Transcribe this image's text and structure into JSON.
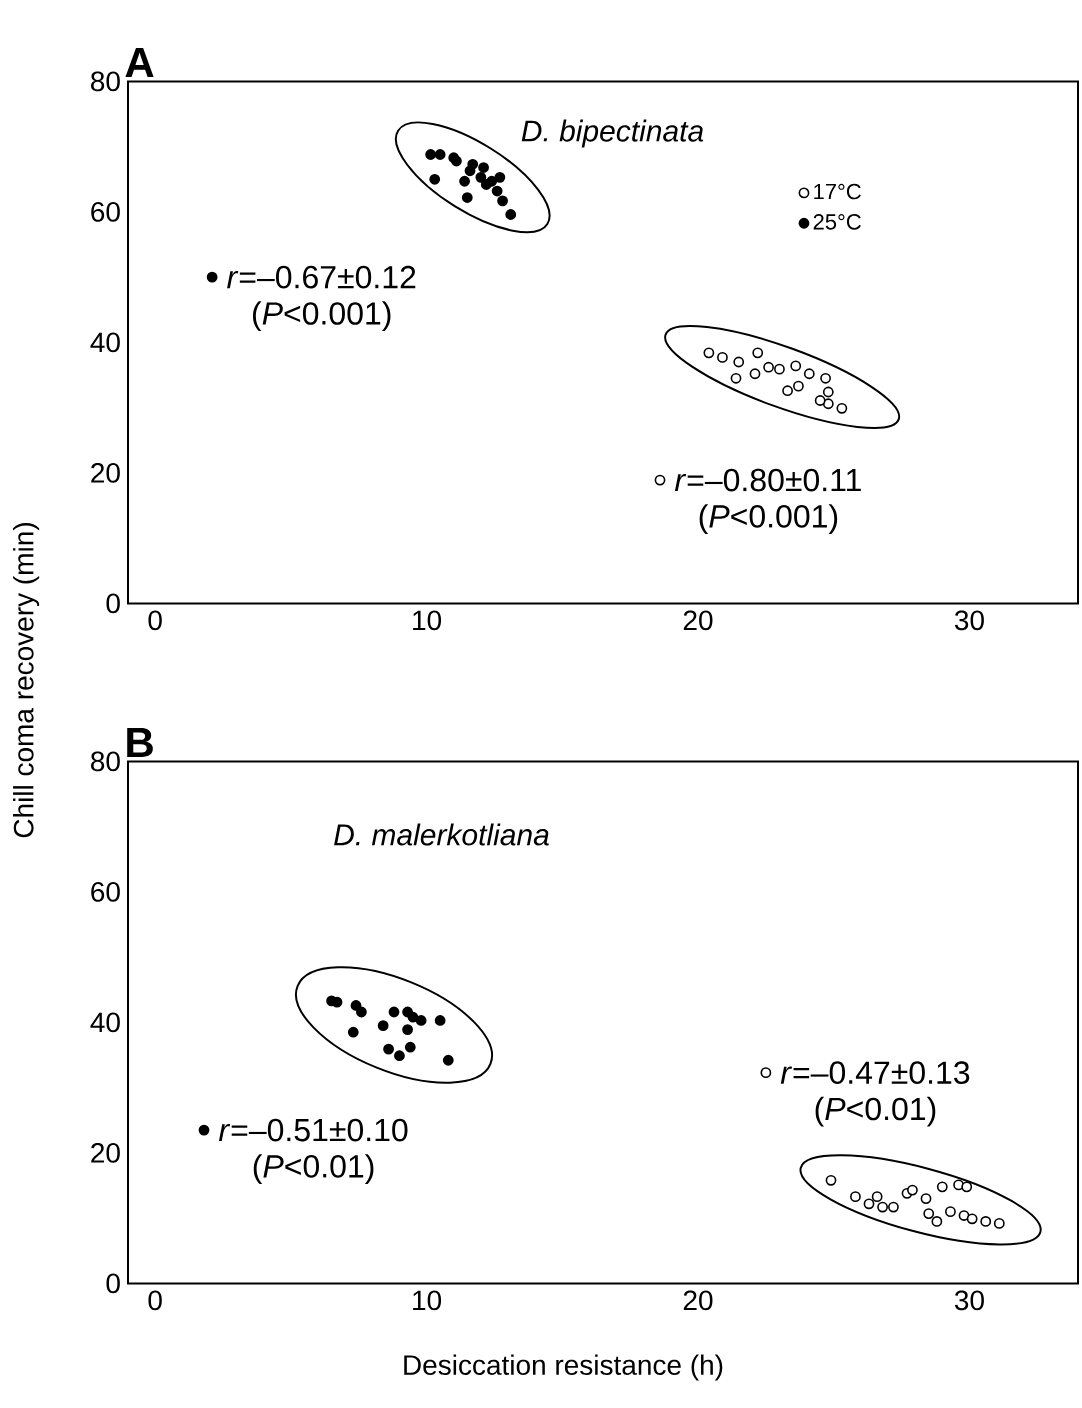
{
  "chart_data": [
    {
      "type": "scatter",
      "title": "A",
      "subtitle": "D. bipectinata",
      "ylabel": "Chill coma recovery (min)",
      "xlim": [
        -1,
        34
      ],
      "ylim": [
        0,
        80
      ],
      "xticks": [
        0,
        10,
        20,
        30
      ],
      "yticks": [
        0,
        20,
        40,
        60,
        80
      ],
      "legend": "right",
      "marker": "circle",
      "series": [
        {
          "name": "17°C",
          "color": "#ffffff",
          "x": [
            20.4,
            20.9,
            21.5,
            22.2,
            22.6,
            23.0,
            23.6,
            24.1,
            24.7,
            21.4,
            22.1,
            23.3,
            23.7,
            24.4,
            24.8,
            24.8,
            25.3,
            24.5
          ],
          "values": [
            38.4,
            37.7,
            37.0,
            38.4,
            36.2,
            35.9,
            36.4,
            35.2,
            34.5,
            34.5,
            35.2,
            32.6,
            33.3,
            null,
            32.4,
            30.6,
            29.9,
            31.1
          ]
        },
        {
          "name": "25°C",
          "color": "#000000",
          "x": [
            10.15,
            10.5,
            11.0,
            11.1,
            11.6,
            11.7,
            12.1,
            12.0,
            12.4,
            12.7,
            10.3,
            11.4,
            12.2,
            12.6,
            11.5,
            12.8,
            13.1
          ],
          "values": [
            68.8,
            68.8,
            68.3,
            67.8,
            66.3,
            67.3,
            66.8,
            65.3,
            64.7,
            65.3,
            65.0,
            64.7,
            64.2,
            63.2,
            62.2,
            61.7,
            59.6
          ]
        }
      ],
      "annotations": [
        {
          "text": "*r*=–0.67±0.12",
          "x": 2.1,
          "y": 50
        },
        "(*P*<0.001)",
        {
          "text": "*r*=–0.80±0.11",
          "x": 18.6,
          "y": 18.9
        },
        "(*P*<0.001)"
      ]
    },
    {
      "type": "scatter",
      "title": "B",
      "subtitle": "D. malerkotliana",
      "xlabel": "Desiccation resistance (h)",
      "xlim": [
        -1,
        34
      ],
      "ylim": [
        0,
        80
      ],
      "xticks": [
        0,
        10,
        20,
        30
      ],
      "yticks": [
        0,
        20,
        40,
        60,
        80
      ],
      "marker": "circle",
      "series": [
        {
          "color": "#ffffff",
          "x": [
            24.9,
            25.8,
            26.3,
            26.6,
            26.8,
            27.2,
            27.7,
            27.9,
            28.4,
            29.0,
            29.6,
            29.9,
            28.5,
            28.8,
            29.3,
            29.8,
            30.1,
            30.6,
            31.1
          ],
          "values": [
            15.8,
            13.3,
            12.2,
            13.3,
            11.7,
            11.7,
            13.8,
            14.3,
            13.0,
            14.8,
            15.1,
            14.8,
            10.7,
            9.5,
            11.0,
            10.4,
            9.9,
            9.5,
            9.2
          ]
        },
        {
          "color": "#000000",
          "x": [
            6.5,
            6.7,
            7.4,
            7.6,
            8.8,
            9.3,
            9.5,
            9.8,
            10.5,
            8.4,
            7.3,
            9.3,
            9.4,
            8.6,
            9.0,
            10.8
          ],
          "values": [
            43.3,
            43.1,
            42.6,
            41.6,
            41.6,
            41.6,
            40.8,
            40.3,
            40.3,
            39.5,
            38.5,
            38.9,
            36.2,
            35.9,
            34.9,
            34.2
          ]
        }
      ],
      "annotations": [
        {
          "text": "*r*=–0.47±0.13",
          "x": 22.5,
          "y": 32.3
        },
        "(*P*<0.01)",
        {
          "text": "*r*=–0.51±0.10",
          "x": 1.8,
          "y": 23.5
        },
        "(*P*<0.01)"
      ]
    }
  ]
}
